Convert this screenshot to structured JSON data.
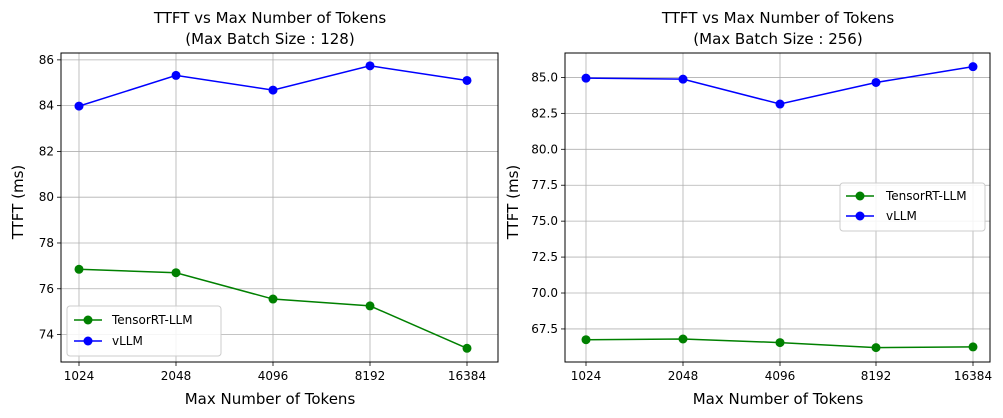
{
  "chart_data": [
    {
      "type": "line",
      "title": "TTFT vs Max Number of Tokens",
      "subtitle": "(Max Batch Size : 128)",
      "xlabel": "Max Number of Tokens",
      "ylabel": "TTFT (ms)",
      "categories": [
        "1024",
        "2048",
        "4096",
        "8192",
        "16384"
      ],
      "ylim": [
        72.8,
        86.3
      ],
      "yticks": [
        74,
        76,
        78,
        80,
        82,
        84,
        86
      ],
      "ytick_labels": [
        "74",
        "76",
        "78",
        "80",
        "82",
        "84",
        "86"
      ],
      "grid": true,
      "legend_position": "lower-left",
      "series": [
        {
          "name": "TensorRT-LLM",
          "color": "#008000",
          "values": [
            76.85,
            76.7,
            75.55,
            75.25,
            73.4
          ]
        },
        {
          "name": "vLLM",
          "color": "#0000ff",
          "values": [
            83.98,
            85.32,
            84.68,
            85.74,
            85.1
          ]
        }
      ]
    },
    {
      "type": "line",
      "title": "TTFT vs Max Number of Tokens",
      "subtitle": "(Max Batch Size : 256)",
      "xlabel": "Max Number of Tokens",
      "ylabel": "TTFT (ms)",
      "categories": [
        "1024",
        "2048",
        "4096",
        "8192",
        "16384"
      ],
      "ylim": [
        65.2,
        86.7
      ],
      "yticks": [
        67.5,
        70.0,
        72.5,
        75.0,
        77.5,
        80.0,
        82.5,
        85.0
      ],
      "ytick_labels": [
        "67.5",
        "70.0",
        "72.5",
        "75.0",
        "77.5",
        "80.0",
        "82.5",
        "85.0"
      ],
      "grid": true,
      "legend_position": "center-right",
      "series": [
        {
          "name": "TensorRT-LLM",
          "color": "#008000",
          "values": [
            66.75,
            66.8,
            66.55,
            66.2,
            66.25
          ]
        },
        {
          "name": "vLLM",
          "color": "#0000ff",
          "values": [
            84.95,
            84.88,
            83.15,
            84.65,
            85.75
          ]
        }
      ]
    }
  ]
}
